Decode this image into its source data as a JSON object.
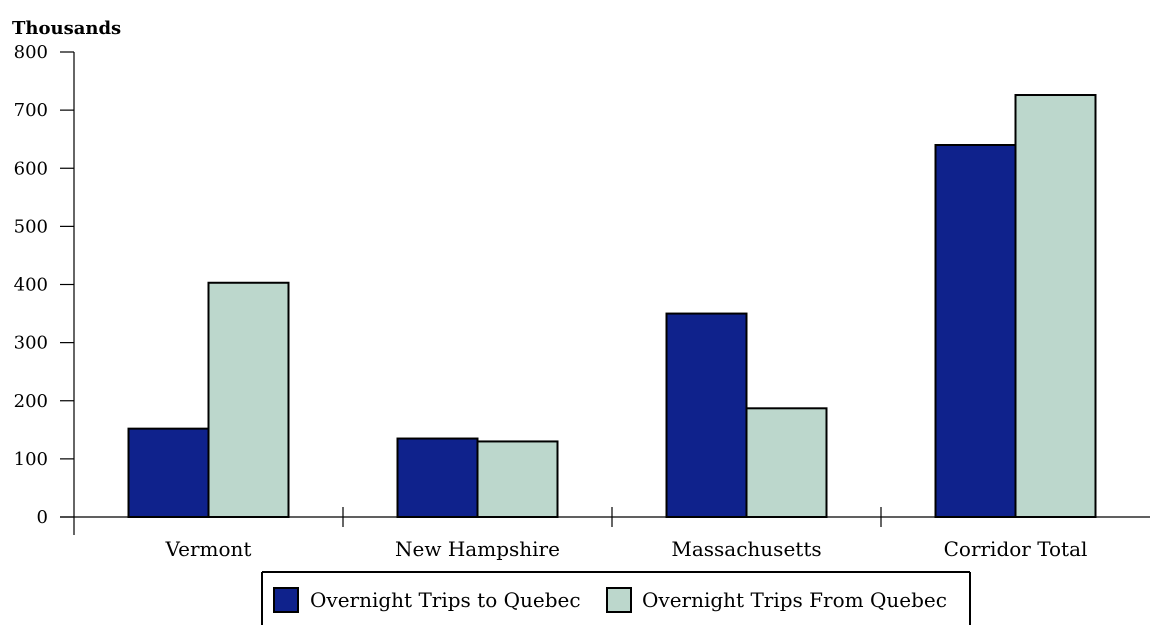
{
  "chart_data": {
    "type": "bar",
    "title": "",
    "ylabel": "Thousands",
    "xlabel": "",
    "categories": [
      "Vermont",
      "New Hampshire",
      "Massachusetts",
      "Corridor Total"
    ],
    "series": [
      {
        "name": "Overnight Trips to Quebec",
        "values": [
          152,
          135,
          350,
          640
        ]
      },
      {
        "name": "Overnight Trips From Quebec",
        "values": [
          403,
          130,
          187,
          726
        ]
      }
    ],
    "ylim": [
      0,
      800
    ],
    "yticks": [
      0,
      100,
      200,
      300,
      400,
      500,
      600,
      700,
      800
    ],
    "grid": false,
    "legend_position": "bottom-center",
    "colors": [
      "#0f228c",
      "#bcd7cc"
    ]
  }
}
